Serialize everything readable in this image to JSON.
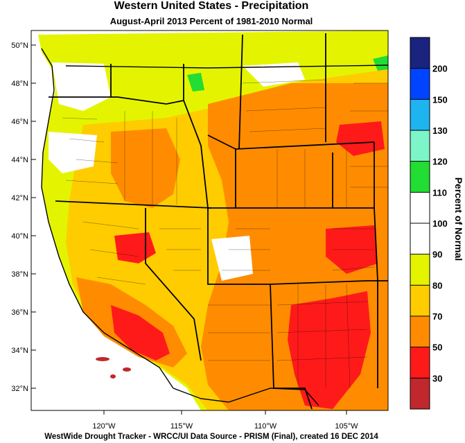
{
  "title": "Western United States - Precipitation",
  "subtitle": "August-April 2013  Percent of 1981-2010 Normal",
  "footer": "WestWide Drought Tracker - WRCC/UI  Data Source - PRISM (Final), created 16 DEC 2014",
  "latitude_labels": [
    "50°N",
    "48°N",
    "46°N",
    "44°N",
    "42°N",
    "40°N",
    "38°N",
    "36°N",
    "34°N",
    "32°N"
  ],
  "longitude_labels": [
    "120°W",
    "115°W",
    "110°W",
    "105°W"
  ],
  "colorbar": {
    "title": "Percent of Normal",
    "tick_labels": [
      "200",
      "150",
      "130",
      "120",
      "110",
      "100",
      "90",
      "80",
      "70",
      "50",
      "30"
    ],
    "bins": [
      {
        "color": "#1a237e"
      },
      {
        "color": "#0044ff"
      },
      {
        "color": "#1eb4f0"
      },
      {
        "color": "#7cf5c8"
      },
      {
        "color": "#22dd33"
      },
      {
        "color": "#ffffff"
      },
      {
        "color": "#ffffff"
      },
      {
        "color": "#e4f400"
      },
      {
        "color": "#ffcc00"
      },
      {
        "color": "#ff8c00"
      },
      {
        "color": "#ff1a1a"
      },
      {
        "color": "#c0282d"
      }
    ]
  },
  "map_colors": {
    "ocean": "#ffffff",
    "wet": "#22dd33",
    "normal": "#ffffff",
    "near_normal": "#e4f400",
    "dry": "#ffcc00",
    "drier": "#ff8c00",
    "driest": "#ff1a1a"
  }
}
